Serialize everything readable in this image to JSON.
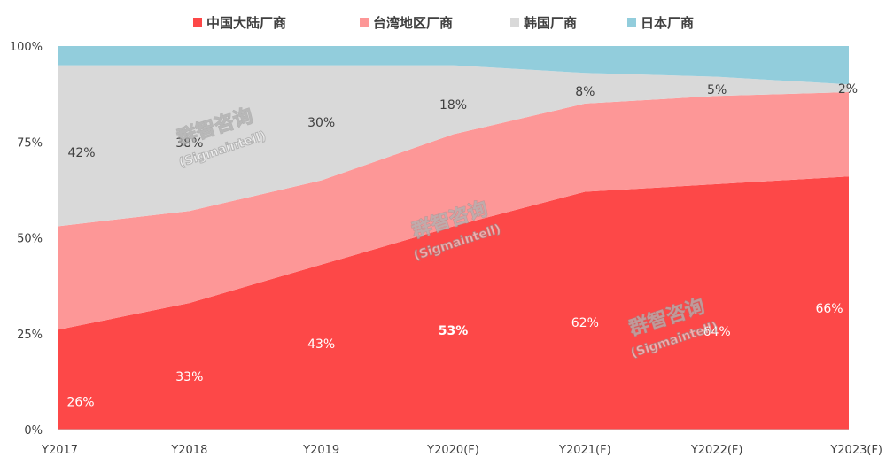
{
  "chart_data": {
    "type": "area",
    "stacked": true,
    "normalized": true,
    "categories": [
      "Y2017",
      "Y2018",
      "Y2019",
      "Y2020(F)",
      "Y2021(F)",
      "Y2022(F)",
      "Y2023(F)"
    ],
    "series": [
      {
        "name": "中国大陆厂商",
        "color": "#fd4848",
        "values": [
          26,
          33,
          43,
          53,
          62,
          64,
          66
        ],
        "labels": [
          "26%",
          "33%",
          "43%",
          "53%",
          "62%",
          "64%",
          "66%"
        ]
      },
      {
        "name": "台湾地区厂商",
        "color": "#fd9797",
        "values": [
          27,
          24,
          22,
          24,
          23,
          23,
          22
        ],
        "labels": []
      },
      {
        "name": "韩国厂商",
        "color": "#d9d9d9",
        "values": [
          42,
          38,
          30,
          18,
          8,
          5,
          2
        ],
        "labels": [
          "42%",
          "38%",
          "30%",
          "18%",
          "8%",
          "5%",
          "2%"
        ]
      },
      {
        "name": "日本厂商",
        "color": "#92cddc",
        "values": [
          5,
          5,
          5,
          5,
          7,
          8,
          10
        ],
        "labels": []
      }
    ],
    "yticks": [
      "0%",
      "25%",
      "50%",
      "75%",
      "100%"
    ],
    "ylim": [
      0,
      100
    ],
    "legend_position": "top",
    "grid": false,
    "highlight_label": "53%"
  },
  "watermark": {
    "brand": "群智咨询",
    "brand_en": "(Sigmaintell)"
  }
}
